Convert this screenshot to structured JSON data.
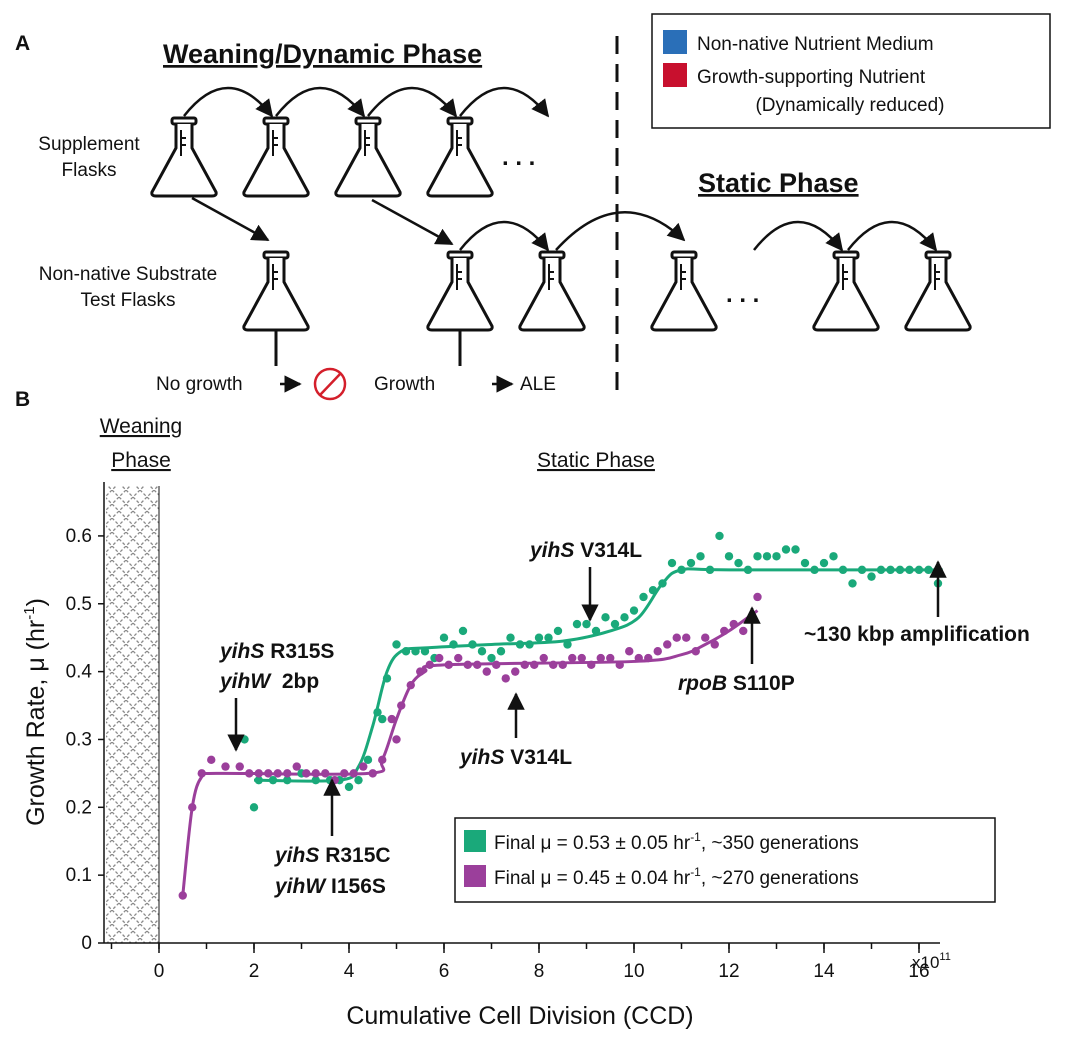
{
  "panel_a": {
    "label": "A",
    "weaning_title": "Weaning/Dynamic Phase",
    "static_title": "Static Phase",
    "supplement_label": [
      "Supplement",
      "Flasks"
    ],
    "test_label": [
      "Non-native Substrate",
      "Test Flasks"
    ],
    "dots": ". . .",
    "no_growth": "No growth",
    "growth": "Growth",
    "ale": "ALE",
    "legend": {
      "medium": "Non-native Nutrient Medium",
      "nutrient_1": "Growth-supporting Nutrient",
      "nutrient_2": "(Dynamically reduced)",
      "medium_color": "#2a6fb8",
      "nutrient_color": "#c8102e"
    }
  },
  "panel_b": {
    "label": "B",
    "weaning_header": [
      "Weaning",
      "Phase"
    ],
    "static_header": "Static Phase",
    "annotations": {
      "g1_a": "yihS",
      "g1_b": " R315S",
      "g1_c": "yihW",
      "g1_d": "  2bp",
      "g2_a": "yihS",
      "g2_b": " R315C",
      "g2_c": "yihW",
      "g2_d": " I156S",
      "g3_a": "yihS",
      "g3_b": " V314L",
      "g4_a": "yihS",
      "g4_b": " V314L",
      "g5_a": "rpoB",
      "g5_b": " S110P",
      "g6": "~130 kbp amplification"
    },
    "legend": {
      "green_pre": "Final μ = 0.53 ± 0.05 hr",
      "green_sup": "-1",
      "green_post": ", ~350 generations",
      "purple_pre": "Final μ = 0.45 ± 0.04 hr",
      "purple_sup": "-1",
      "purple_post": ", ~270 generations"
    }
  },
  "chart_data": {
    "type": "scatter",
    "xlabel": "Cumulative Cell Division (CCD)",
    "ylabel_main": "Growth Rate, μ (hr",
    "ylabel_sup": "-1",
    "ylabel_end": ")",
    "x_multiplier": "x10",
    "x_multiplier_exp": "11",
    "xlim": [
      -1.2,
      16.5
    ],
    "ylim": [
      0,
      0.65
    ],
    "x_ticks": [
      0,
      2,
      4,
      6,
      8,
      10,
      12,
      14,
      16
    ],
    "y_ticks": [
      0,
      0.1,
      0.2,
      0.3,
      0.4,
      0.5,
      0.6
    ],
    "y_tick_labels": [
      "0",
      "0.1",
      "0.2",
      "0.3",
      "0.4",
      "0.5",
      "0.6"
    ],
    "series": [
      {
        "color": "#1aa97a",
        "points": [
          [
            1.8,
            0.3
          ],
          [
            2.0,
            0.2
          ],
          [
            2.1,
            0.24
          ],
          [
            2.4,
            0.24
          ],
          [
            2.7,
            0.24
          ],
          [
            3.0,
            0.25
          ],
          [
            3.3,
            0.24
          ],
          [
            3.6,
            0.24
          ],
          [
            3.8,
            0.24
          ],
          [
            4.0,
            0.23
          ],
          [
            4.2,
            0.24
          ],
          [
            4.4,
            0.27
          ],
          [
            4.6,
            0.34
          ],
          [
            4.7,
            0.33
          ],
          [
            4.8,
            0.39
          ],
          [
            5.0,
            0.44
          ],
          [
            5.2,
            0.43
          ],
          [
            5.4,
            0.43
          ],
          [
            5.6,
            0.43
          ],
          [
            5.8,
            0.42
          ],
          [
            6.0,
            0.45
          ],
          [
            6.2,
            0.44
          ],
          [
            6.4,
            0.46
          ],
          [
            6.6,
            0.44
          ],
          [
            6.8,
            0.43
          ],
          [
            7.0,
            0.42
          ],
          [
            7.2,
            0.43
          ],
          [
            7.4,
            0.45
          ],
          [
            7.6,
            0.44
          ],
          [
            7.8,
            0.44
          ],
          [
            8.0,
            0.45
          ],
          [
            8.2,
            0.45
          ],
          [
            8.4,
            0.46
          ],
          [
            8.6,
            0.44
          ],
          [
            8.8,
            0.47
          ],
          [
            9.0,
            0.47
          ],
          [
            9.2,
            0.46
          ],
          [
            9.4,
            0.48
          ],
          [
            9.6,
            0.47
          ],
          [
            9.8,
            0.48
          ],
          [
            10.0,
            0.49
          ],
          [
            10.2,
            0.51
          ],
          [
            10.4,
            0.52
          ],
          [
            10.6,
            0.53
          ],
          [
            10.8,
            0.56
          ],
          [
            11.0,
            0.55
          ],
          [
            11.2,
            0.56
          ],
          [
            11.4,
            0.57
          ],
          [
            11.6,
            0.55
          ],
          [
            11.8,
            0.6
          ],
          [
            12.0,
            0.57
          ],
          [
            12.2,
            0.56
          ],
          [
            12.4,
            0.55
          ],
          [
            12.6,
            0.57
          ],
          [
            12.8,
            0.57
          ],
          [
            13.0,
            0.57
          ],
          [
            13.2,
            0.58
          ],
          [
            13.4,
            0.58
          ],
          [
            13.6,
            0.56
          ],
          [
            13.8,
            0.55
          ],
          [
            14.0,
            0.56
          ],
          [
            14.2,
            0.57
          ],
          [
            14.4,
            0.55
          ],
          [
            14.6,
            0.53
          ],
          [
            14.8,
            0.55
          ],
          [
            15.0,
            0.54
          ],
          [
            15.2,
            0.55
          ],
          [
            15.4,
            0.55
          ],
          [
            15.6,
            0.55
          ],
          [
            15.8,
            0.55
          ],
          [
            16.0,
            0.55
          ],
          [
            16.2,
            0.55
          ],
          [
            16.4,
            0.53
          ]
        ],
        "fit": [
          [
            2.0,
            0.24
          ],
          [
            3.8,
            0.24
          ],
          [
            4.2,
            0.26
          ],
          [
            4.5,
            0.32
          ],
          [
            4.8,
            0.4
          ],
          [
            5.1,
            0.43
          ],
          [
            5.6,
            0.435
          ],
          [
            7.0,
            0.44
          ],
          [
            8.5,
            0.445
          ],
          [
            9.5,
            0.46
          ],
          [
            10.1,
            0.48
          ],
          [
            10.6,
            0.53
          ],
          [
            11.0,
            0.55
          ],
          [
            12.0,
            0.55
          ],
          [
            16.5,
            0.55
          ]
        ]
      },
      {
        "color": "#9b3f9b",
        "points": [
          [
            0.5,
            0.07
          ],
          [
            0.7,
            0.2
          ],
          [
            0.9,
            0.25
          ],
          [
            1.1,
            0.27
          ],
          [
            1.4,
            0.26
          ],
          [
            1.7,
            0.26
          ],
          [
            1.9,
            0.25
          ],
          [
            2.1,
            0.25
          ],
          [
            2.3,
            0.25
          ],
          [
            2.5,
            0.25
          ],
          [
            2.7,
            0.25
          ],
          [
            2.9,
            0.26
          ],
          [
            3.1,
            0.25
          ],
          [
            3.3,
            0.25
          ],
          [
            3.5,
            0.25
          ],
          [
            3.7,
            0.24
          ],
          [
            3.9,
            0.25
          ],
          [
            4.1,
            0.25
          ],
          [
            4.3,
            0.26
          ],
          [
            4.5,
            0.25
          ],
          [
            4.7,
            0.27
          ],
          [
            4.9,
            0.33
          ],
          [
            5.0,
            0.3
          ],
          [
            5.1,
            0.35
          ],
          [
            5.3,
            0.38
          ],
          [
            5.5,
            0.4
          ],
          [
            5.7,
            0.41
          ],
          [
            5.9,
            0.42
          ],
          [
            6.1,
            0.41
          ],
          [
            6.3,
            0.42
          ],
          [
            6.5,
            0.41
          ],
          [
            6.7,
            0.41
          ],
          [
            6.9,
            0.4
          ],
          [
            7.1,
            0.41
          ],
          [
            7.3,
            0.39
          ],
          [
            7.5,
            0.4
          ],
          [
            7.7,
            0.41
          ],
          [
            7.9,
            0.41
          ],
          [
            8.1,
            0.42
          ],
          [
            8.3,
            0.41
          ],
          [
            8.5,
            0.41
          ],
          [
            8.7,
            0.42
          ],
          [
            8.9,
            0.42
          ],
          [
            9.1,
            0.41
          ],
          [
            9.3,
            0.42
          ],
          [
            9.5,
            0.42
          ],
          [
            9.7,
            0.41
          ],
          [
            9.9,
            0.43
          ],
          [
            10.1,
            0.42
          ],
          [
            10.3,
            0.42
          ],
          [
            10.5,
            0.43
          ],
          [
            10.7,
            0.44
          ],
          [
            10.9,
            0.45
          ],
          [
            11.1,
            0.45
          ],
          [
            11.3,
            0.43
          ],
          [
            11.5,
            0.45
          ],
          [
            11.7,
            0.44
          ],
          [
            11.9,
            0.46
          ],
          [
            12.1,
            0.47
          ],
          [
            12.3,
            0.46
          ],
          [
            12.6,
            0.51
          ]
        ],
        "fit": [
          [
            0.5,
            0.07
          ],
          [
            0.7,
            0.2
          ],
          [
            0.9,
            0.245
          ],
          [
            1.2,
            0.25
          ],
          [
            4.4,
            0.25
          ],
          [
            4.7,
            0.27
          ],
          [
            5.0,
            0.33
          ],
          [
            5.3,
            0.38
          ],
          [
            5.6,
            0.4
          ],
          [
            6.0,
            0.41
          ],
          [
            10.0,
            0.415
          ],
          [
            11.0,
            0.425
          ],
          [
            11.5,
            0.44
          ],
          [
            12.0,
            0.46
          ],
          [
            12.6,
            0.49
          ]
        ]
      }
    ]
  }
}
